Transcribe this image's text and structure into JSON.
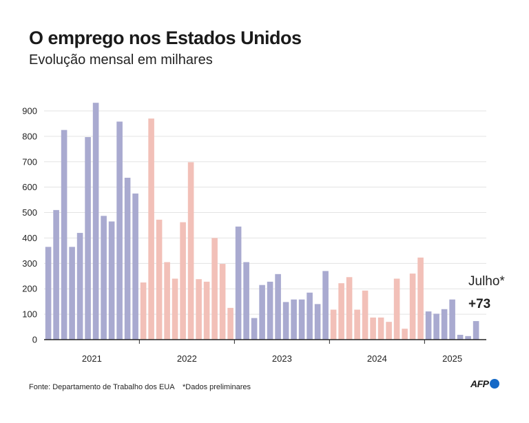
{
  "header": {
    "title": "O emprego nos Estados Unidos",
    "subtitle": "Evolução mensal em milhares"
  },
  "footer": {
    "source": "Fonte: Departamento de Trabalho dos EUA",
    "note": "*Dados preliminares",
    "logo": "AFP"
  },
  "colors": {
    "purple": "#a9aad0",
    "pink": "#f2c0b8",
    "grid": "#e3e3e3",
    "axis": "#222222",
    "logo_dot": "#1569c7"
  },
  "chart_data": {
    "type": "bar",
    "title": "O emprego nos Estados Unidos",
    "subtitle": "Evolução mensal em milhares",
    "ylim": [
      0,
      900
    ],
    "yticks": [
      0,
      100,
      200,
      300,
      400,
      500,
      600,
      700,
      800,
      900
    ],
    "grid": true,
    "series": [
      {
        "year": "2021",
        "color": "purple",
        "values": [
          365,
          510,
          825,
          365,
          420,
          797,
          932,
          487,
          465,
          858,
          637,
          575
        ]
      },
      {
        "year": "2022",
        "color": "pink",
        "values": [
          225,
          870,
          472,
          305,
          240,
          462,
          698,
          238,
          228,
          400,
          298,
          125
        ]
      },
      {
        "year": "2023",
        "color": "purple",
        "values": [
          445,
          305,
          85,
          215,
          228,
          258,
          148,
          158,
          158,
          185,
          140,
          270
        ]
      },
      {
        "year": "2024",
        "color": "pink",
        "values": [
          118,
          222,
          246,
          118,
          193,
          87,
          87,
          70,
          240,
          43,
          260,
          323
        ]
      },
      {
        "year": "2025",
        "color": "purple",
        "values": [
          111,
          102,
          120,
          158,
          19,
          14,
          73
        ]
      }
    ],
    "annotation": {
      "label": "Julho*",
      "value": "+73"
    }
  }
}
